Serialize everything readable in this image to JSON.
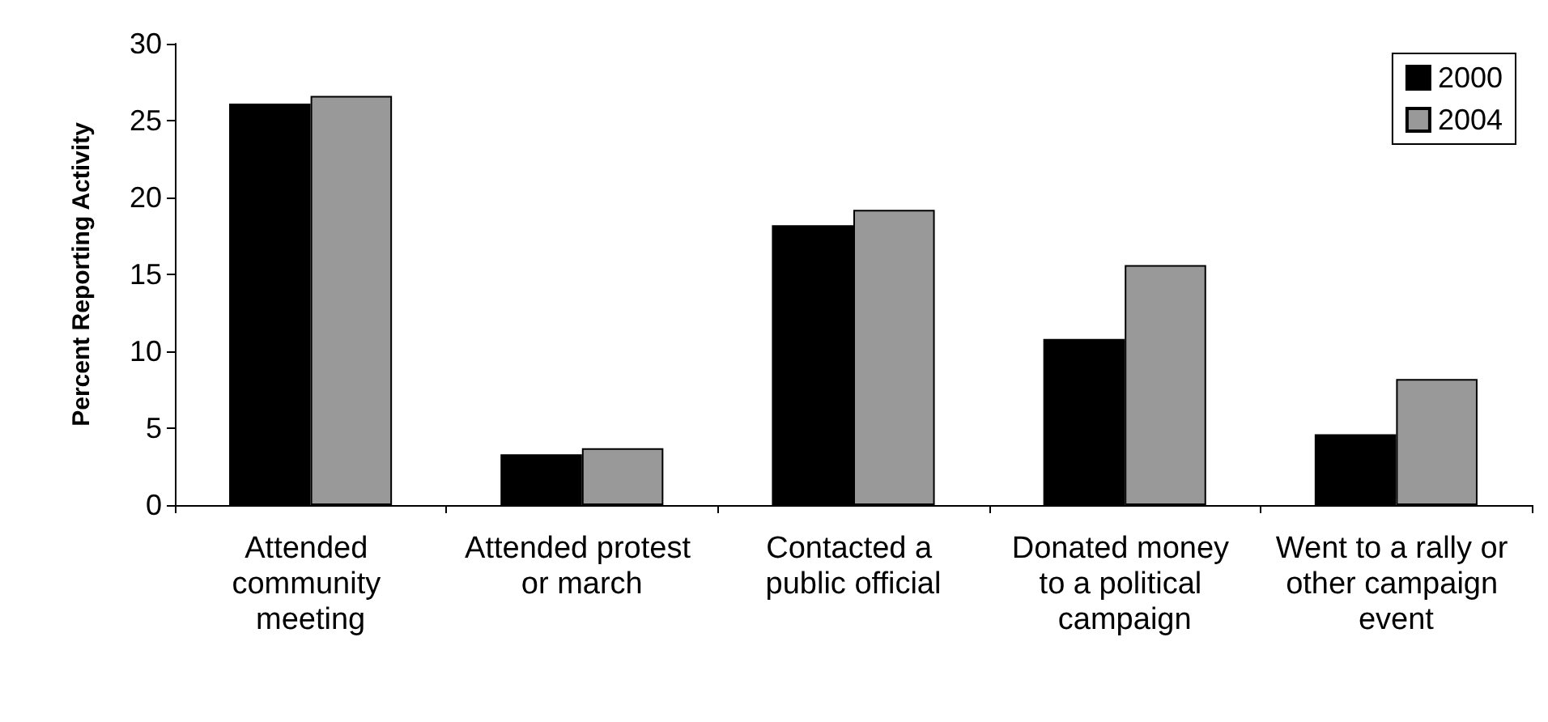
{
  "chart_data": {
    "type": "bar",
    "ylabel": "Percent Reporting Activity",
    "categories": [
      "Attended community meeting",
      "Attended protest or march",
      "Contacted a public official",
      "Donated money to a political campaign",
      "Went to a rally or other campaign event"
    ],
    "series": [
      {
        "name": "2000",
        "color": "#000000",
        "values": [
          26.1,
          3.3,
          18.2,
          10.8,
          4.6
        ]
      },
      {
        "name": "2004",
        "color": "#999999",
        "values": [
          26.6,
          3.7,
          19.2,
          15.6,
          8.2
        ]
      }
    ],
    "ylim": [
      0,
      30
    ],
    "yticks": [
      0,
      5,
      10,
      15,
      20,
      25,
      30
    ],
    "grid": false,
    "legend": "top right"
  }
}
